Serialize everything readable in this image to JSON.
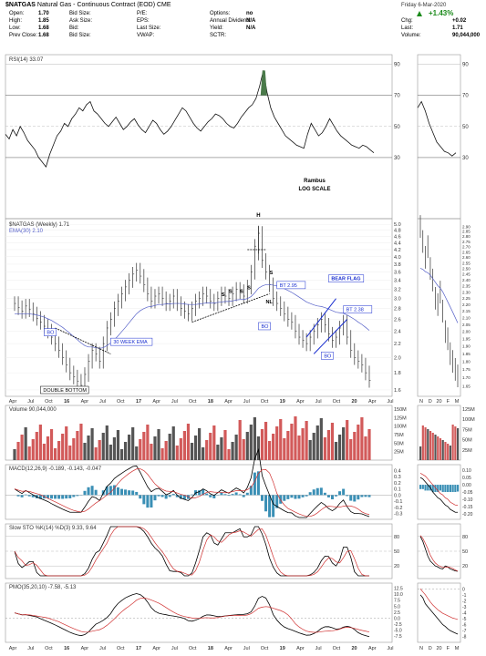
{
  "header": {
    "symbol": "$NATGAS",
    "name": "Natural Gas - Continuous Contract (EOD) CME",
    "date": "Friday 6-Mar-2020",
    "change_pct": "+1.43%",
    "quotes": [
      {
        "label": "Open:",
        "value": "1.70"
      },
      {
        "label": "High:",
        "value": "1.85"
      },
      {
        "label": "Low:",
        "value": "1.68"
      },
      {
        "label": "Prev Close:",
        "value": "1.68"
      }
    ],
    "quotes2": [
      {
        "label": "Bid Size:",
        "value": ""
      },
      {
        "label": "Ask Size:",
        "value": ""
      },
      {
        "label": "Bid:",
        "value": ""
      },
      {
        "label": "Bid Size:",
        "value": ""
      }
    ],
    "quotes3": [
      {
        "label": "P/E:",
        "value": ""
      },
      {
        "label": "EPS:",
        "value": ""
      },
      {
        "label": "Last Size:",
        "value": ""
      },
      {
        "label": "VWAP:",
        "value": ""
      }
    ],
    "quotes4": [
      {
        "label": "Options:",
        "value": "no"
      },
      {
        "label": "Annual Dividend:",
        "value": "N/A"
      },
      {
        "label": "Yield:",
        "value": "N/A"
      },
      {
        "label": "SCTR:",
        "value": ""
      }
    ],
    "quotes5": [
      {
        "label": "Chg:",
        "value": "+0.02"
      },
      {
        "label": "Last:",
        "value": "1.71"
      },
      {
        "label": "Volume:",
        "value": "90,044,000"
      }
    ]
  },
  "chart_data": [
    {
      "type": "line",
      "panel": "rsi",
      "label": "RSI(14) 33.07",
      "y_ticks": [
        30,
        50,
        70,
        90
      ],
      "ylim": [
        20,
        95
      ],
      "values": [
        45,
        42,
        48,
        44,
        50,
        46,
        41,
        38,
        35,
        30,
        27,
        24,
        32,
        38,
        44,
        47,
        52,
        50,
        55,
        58,
        62,
        60,
        64,
        66,
        60,
        58,
        55,
        52,
        50,
        53,
        56,
        52,
        48,
        50,
        53,
        55,
        51,
        48,
        46,
        50,
        54,
        52,
        48,
        45,
        47,
        50,
        54,
        58,
        62,
        60,
        56,
        52,
        49,
        47,
        50,
        53,
        55,
        58,
        57,
        55,
        52,
        50,
        49,
        52,
        56,
        59,
        62,
        64,
        68,
        76,
        86,
        72,
        62,
        56,
        52,
        48,
        44,
        42,
        40,
        38,
        37,
        36,
        45,
        52,
        48,
        44,
        46,
        50,
        55,
        51,
        47,
        44,
        42,
        40,
        38,
        37,
        36,
        38,
        37,
        35,
        33.07
      ],
      "weekly_values": [
        62,
        66,
        60,
        52,
        46,
        40,
        37,
        34,
        33,
        31,
        33.07
      ]
    },
    {
      "type": "candlestick",
      "panel": "price",
      "label": "$NATGAS (Weekly) 1.71",
      "ema_label": "EMA(30) 2.10",
      "scale": "log",
      "y_ticks": [
        1.6,
        1.8,
        2.0,
        2.2,
        2.4,
        2.6,
        2.8,
        3.0,
        3.2,
        3.4,
        3.6,
        3.8,
        4.0,
        4.2,
        4.4,
        4.6,
        4.8,
        5.0
      ],
      "ylim": [
        1.55,
        5.1
      ],
      "x_ticks": [
        "Apr",
        "Jul",
        "Oct",
        "16",
        "Apr",
        "Jul",
        "Oct",
        "17",
        "Apr",
        "Jul",
        "Oct",
        "18",
        "Apr",
        "Jul",
        "Oct",
        "19",
        "Apr",
        "Jul",
        "Oct",
        "20",
        "Apr",
        "Jul"
      ],
      "close": [
        2.9,
        2.82,
        2.75,
        2.85,
        2.78,
        2.7,
        2.62,
        2.55,
        2.48,
        2.4,
        2.3,
        2.2,
        2.1,
        2.0,
        1.9,
        1.8,
        1.75,
        1.7,
        1.65,
        1.78,
        1.95,
        2.1,
        2.05,
        1.95,
        2.2,
        2.45,
        2.6,
        2.8,
        2.95,
        3.1,
        3.25,
        3.4,
        3.55,
        3.65,
        3.5,
        3.3,
        3.1,
        2.95,
        3.05,
        3.1,
        3.0,
        2.9,
        2.95,
        3.05,
        2.9,
        2.8,
        2.75,
        2.7,
        2.8,
        2.95,
        3.0,
        3.1,
        3.05,
        2.95,
        2.9,
        3.0,
        3.1,
        3.05,
        3.0,
        3.1,
        3.2,
        3.15,
        3.05,
        3.25,
        3.6,
        4.3,
        4.7,
        3.9,
        3.6,
        3.3,
        3.0,
        2.9,
        2.8,
        2.7,
        2.6,
        2.55,
        2.4,
        2.3,
        2.25,
        2.2,
        2.3,
        2.4,
        2.5,
        2.6,
        2.5,
        2.35,
        2.25,
        2.3,
        2.45,
        2.55,
        2.3,
        2.1,
        2.0,
        1.95,
        1.9,
        1.8,
        1.71
      ],
      "ema": [
        2.7,
        2.7,
        2.7,
        2.7,
        2.7,
        2.69,
        2.68,
        2.66,
        2.64,
        2.61,
        2.58,
        2.54,
        2.5,
        2.46,
        2.41,
        2.36,
        2.31,
        2.26,
        2.21,
        2.17,
        2.15,
        2.15,
        2.14,
        2.13,
        2.14,
        2.17,
        2.21,
        2.26,
        2.32,
        2.39,
        2.46,
        2.54,
        2.62,
        2.7,
        2.76,
        2.8,
        2.83,
        2.84,
        2.86,
        2.88,
        2.88,
        2.89,
        2.89,
        2.9,
        2.9,
        2.9,
        2.89,
        2.88,
        2.88,
        2.88,
        2.89,
        2.9,
        2.91,
        2.91,
        2.91,
        2.92,
        2.93,
        2.94,
        2.94,
        2.95,
        2.97,
        2.98,
        2.98,
        3.0,
        3.04,
        3.12,
        3.22,
        3.27,
        3.3,
        3.3,
        3.29,
        3.27,
        3.24,
        3.21,
        3.17,
        3.13,
        3.08,
        3.03,
        2.98,
        2.93,
        2.9,
        2.87,
        2.85,
        2.84,
        2.82,
        2.79,
        2.76,
        2.73,
        2.72,
        2.71,
        2.68,
        2.64,
        2.6,
        2.55,
        2.51,
        2.46,
        2.41
      ],
      "daily_close": [
        2.9,
        2.75,
        2.6,
        2.7,
        2.5,
        2.4,
        2.25,
        2.2,
        2.3,
        2.15,
        2.0,
        1.95,
        1.85,
        1.8,
        1.75,
        1.71
      ],
      "daily_ema": [
        2.5,
        2.49,
        2.47,
        2.46,
        2.44,
        2.41,
        2.38,
        2.35,
        2.33,
        2.3,
        2.26,
        2.22,
        2.18,
        2.14,
        2.1,
        2.06
      ],
      "daily_y_ticks": [
        1.65,
        1.7,
        1.75,
        1.8,
        1.85,
        1.9,
        1.95,
        2.0,
        2.05,
        2.1,
        2.15,
        2.2,
        2.25,
        2.3,
        2.35,
        2.4,
        2.45,
        2.5,
        2.55,
        2.6,
        2.65,
        2.7,
        2.75,
        2.8,
        2.85,
        2.9
      ],
      "daily_x_ticks": [
        "N",
        "D",
        "20",
        "F",
        "M"
      ],
      "annotations": [
        {
          "text": "H",
          "kind": "label"
        },
        {
          "text": "BO",
          "kind": "box"
        },
        {
          "text": "30 WEEK EMA",
          "kind": "box"
        },
        {
          "text": "DOUBLE BOTTOM",
          "kind": "box"
        },
        {
          "text": "S",
          "kind": "label"
        },
        {
          "text": "S",
          "kind": "label"
        },
        {
          "text": "S",
          "kind": "label"
        },
        {
          "text": "S",
          "kind": "label"
        },
        {
          "text": "S",
          "kind": "label"
        },
        {
          "text": "NL",
          "kind": "label"
        },
        {
          "text": "BO",
          "kind": "box"
        },
        {
          "text": "BT 2.95",
          "kind": "box"
        },
        {
          "text": "BEAR FLAG",
          "kind": "box"
        },
        {
          "text": "BT 2.38",
          "kind": "box"
        },
        {
          "text": "BO",
          "kind": "box"
        },
        {
          "text": "Rambus",
          "kind": "text"
        },
        {
          "text": "LOG SCALE",
          "kind": "text"
        }
      ]
    },
    {
      "type": "bar",
      "panel": "volume",
      "label": "Volume 90,044,000",
      "y_ticks": [
        "25M",
        "50M",
        "75M",
        "100M",
        "125M",
        "150M"
      ],
      "daily_y_ticks": [
        "25M",
        "50M",
        "75M",
        "100M",
        "125M"
      ]
    },
    {
      "type": "line",
      "panel": "macd",
      "label": "MACD(12,26,9) -0.189, -0.143, -0.047",
      "y_ticks": [
        -0.3,
        -0.2,
        -0.1,
        0.0,
        0.1,
        0.2,
        0.3,
        0.4
      ],
      "daily_y_ticks": [
        -0.2,
        -0.15,
        -0.1,
        -0.05,
        0.0,
        0.05,
        0.1
      ]
    },
    {
      "type": "line",
      "panel": "sto",
      "label": "Slow STO %K(14) %D(3) 9.33, 9.64",
      "y_ticks": [
        20,
        50,
        80
      ],
      "daily_y_ticks": [
        20,
        50,
        80
      ]
    },
    {
      "type": "line",
      "panel": "pmo",
      "label": "PMO(35,20,10) -7.58, -5.13",
      "y_ticks": [
        -7.5,
        -5.0,
        -2.5,
        0.0,
        2.5,
        5.0,
        7.5,
        10.0,
        12.5
      ],
      "daily_y_ticks": [
        -8,
        -7,
        -6,
        -5,
        -4,
        -3,
        -2,
        -1,
        0
      ]
    }
  ]
}
